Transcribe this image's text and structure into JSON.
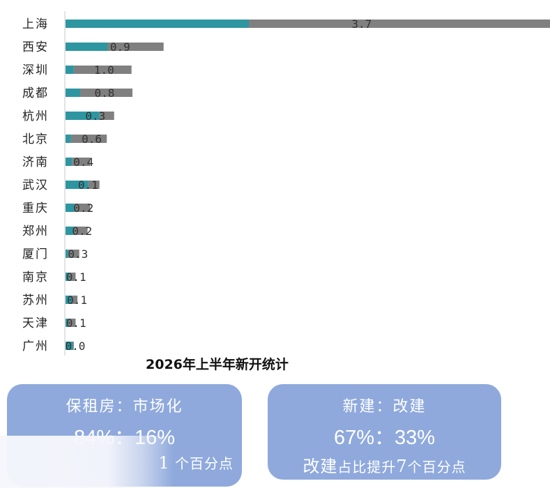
{
  "chart_data": {
    "type": "bar",
    "orientation": "horizontal",
    "title": "2026年上半年新开统计",
    "categories": [
      "上海",
      "西安",
      "深圳",
      "成都",
      "杭州",
      "北京",
      "济南",
      "武汉",
      "重庆",
      "郑州",
      "厦门",
      "南京",
      "苏州",
      "天津",
      "广州"
    ],
    "series": [
      {
        "values": [
          10.0,
          2.3,
          0.45,
          0.8,
          1.85,
          0.3,
          0.35,
          1.25,
          0.5,
          0.45,
          0.15,
          0.2,
          0.35,
          0.15,
          0.4
        ],
        "color": "#2e96a0"
      },
      {
        "values": [
          21.7,
          3.05,
          3.15,
          2.85,
          0.8,
          1.95,
          1.0,
          0.6,
          0.85,
          0.75,
          0.6,
          0.35,
          0.3,
          0.4,
          0.05
        ],
        "color": "#808080"
      }
    ],
    "data_labels": [
      "3.7",
      "0.9",
      "1.0",
      "0.8",
      "0.3",
      "0.6",
      "0.4",
      "0.1",
      "0.2",
      "0.2",
      "0.3",
      "0.1",
      "0.1",
      "0.1",
      "0.0"
    ],
    "stacked": true,
    "grid": false,
    "legend": "none"
  },
  "cards": {
    "left": {
      "title": "保租房：市场化",
      "ratio": "84%：16%",
      "note_number": "1",
      "note_suffix": "个百分点"
    },
    "right": {
      "title": "新建：改建",
      "ratio": "67%：33%",
      "note_prefix": "改建",
      "note_mid": "占比提升",
      "note_number": "7",
      "note_suffix": "个百分点"
    }
  }
}
